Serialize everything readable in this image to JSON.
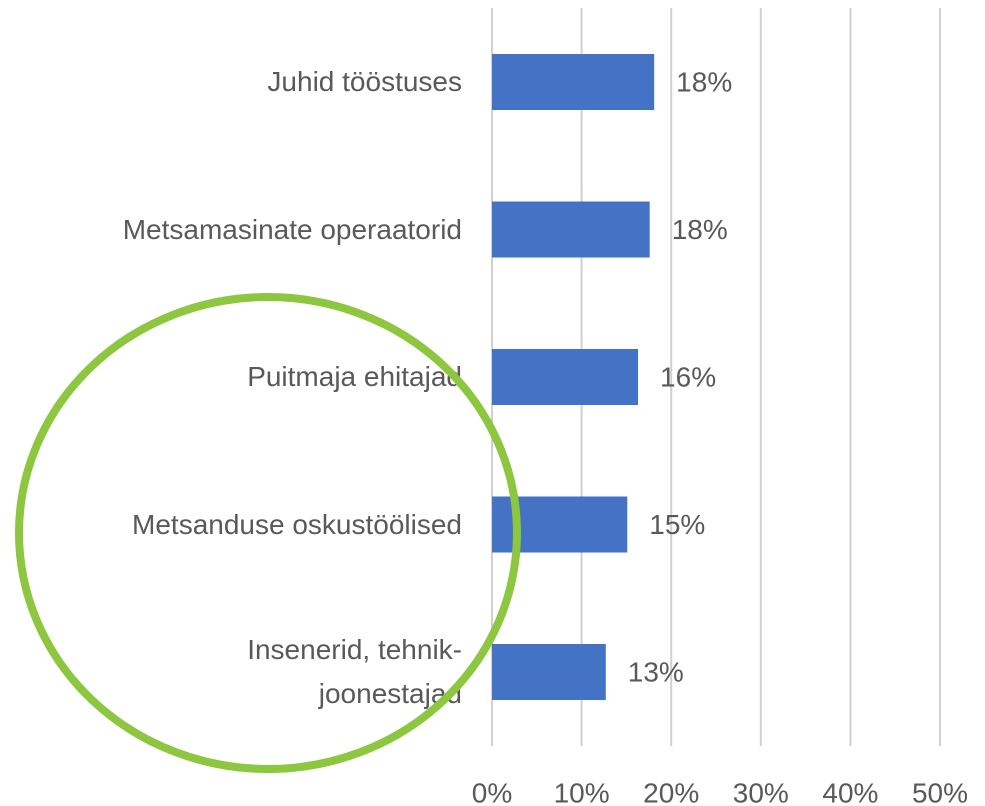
{
  "chart_data": {
    "type": "hbar",
    "categories": [
      "Juhid tööstuses",
      "Metsamasinate operaatorid",
      "Puitmaja ehitajad",
      "Metsanduse oskustöölised",
      "Insenerid, tehnik-\njoonestajad"
    ],
    "values": [
      18.1,
      17.6,
      16.3,
      15.1,
      12.7
    ],
    "value_labels": [
      "18%",
      "18%",
      "16%",
      "15%",
      "13%"
    ],
    "color": "#4472c4",
    "xlim": [
      0,
      50
    ],
    "xticks": [
      {
        "value": 0,
        "label": "0%"
      },
      {
        "value": 10,
        "label": "10%"
      },
      {
        "value": 20,
        "label": "20%"
      },
      {
        "value": 30,
        "label": "30%"
      },
      {
        "value": 40,
        "label": "40%"
      },
      {
        "value": 50,
        "label": "50%"
      }
    ],
    "grid": true
  }
}
